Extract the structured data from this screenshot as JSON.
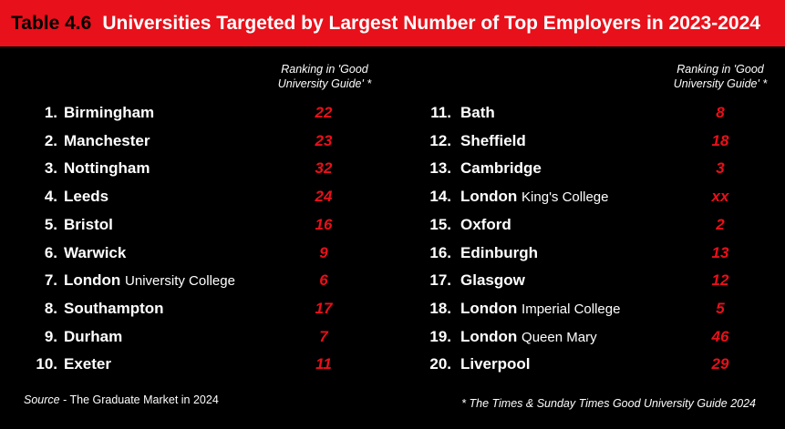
{
  "header": {
    "table_number": "Table 4.6",
    "title": "Universities Targeted by Largest Number of Top Employers in 2023-2024"
  },
  "columns": [
    {
      "ranking_header": "Ranking in 'Good University Guide' *",
      "rows": [
        {
          "pos": "1.",
          "name": "Birmingham",
          "sub": "",
          "rank": "22"
        },
        {
          "pos": "2.",
          "name": "Manchester",
          "sub": "",
          "rank": "23"
        },
        {
          "pos": "3.",
          "name": "Nottingham",
          "sub": "",
          "rank": "32"
        },
        {
          "pos": "4.",
          "name": "Leeds",
          "sub": "",
          "rank": "24"
        },
        {
          "pos": "5.",
          "name": "Bristol",
          "sub": "",
          "rank": "16"
        },
        {
          "pos": "6.",
          "name": "Warwick",
          "sub": "",
          "rank": "9"
        },
        {
          "pos": "7.",
          "name": "London",
          "sub": "University College",
          "rank": "6"
        },
        {
          "pos": "8.",
          "name": "Southampton",
          "sub": "",
          "rank": "17"
        },
        {
          "pos": "9.",
          "name": "Durham",
          "sub": "",
          "rank": "7"
        },
        {
          "pos": "10.",
          "name": "Exeter",
          "sub": "",
          "rank": "11"
        }
      ]
    },
    {
      "ranking_header": "Ranking in 'Good University Guide' *",
      "rows": [
        {
          "pos": "11.",
          "name": "Bath",
          "sub": "",
          "rank": "8"
        },
        {
          "pos": "12.",
          "name": "Sheffield",
          "sub": "",
          "rank": "18"
        },
        {
          "pos": "13.",
          "name": "Cambridge",
          "sub": "",
          "rank": "3"
        },
        {
          "pos": "14.",
          "name": "London",
          "sub": "King's College",
          "rank": "xx"
        },
        {
          "pos": "15.",
          "name": "Oxford",
          "sub": "",
          "rank": "2"
        },
        {
          "pos": "16.",
          "name": "Edinburgh",
          "sub": "",
          "rank": "13"
        },
        {
          "pos": "17.",
          "name": "Glasgow",
          "sub": "",
          "rank": "12"
        },
        {
          "pos": "18.",
          "name": "London",
          "sub": "Imperial College",
          "rank": "5"
        },
        {
          "pos": "19.",
          "name": "London",
          "sub": "Queen Mary",
          "rank": "46"
        },
        {
          "pos": "20.",
          "name": "Liverpool",
          "sub": "",
          "rank": "29"
        }
      ]
    }
  ],
  "footer": {
    "source_label": "Source",
    "source_text": " - The Graduate Market in 2024",
    "footnote": "* The Times & Sunday Times Good University Guide 2024"
  },
  "colors": {
    "accent": "#e8101a",
    "background": "#000000",
    "text": "#ffffff"
  }
}
